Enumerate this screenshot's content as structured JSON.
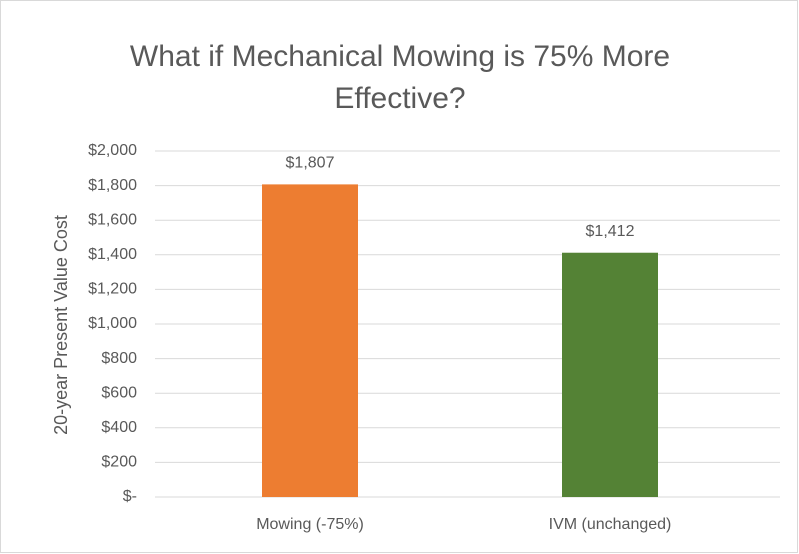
{
  "chart_data": {
    "type": "bar",
    "title": "What if Mechanical Mowing is 75% More Effective?",
    "y_label": "20-year Present Value Cost",
    "categories": [
      "Mowing (-75%)",
      "IVM (unchanged)"
    ],
    "values": [
      1807,
      1412
    ],
    "value_labels": [
      "$1,807",
      "$1,412"
    ],
    "colors": [
      "#ed7d31",
      "#548235"
    ],
    "ylim": [
      0,
      2000
    ],
    "yticks": [
      {
        "value": 0,
        "label": "$-"
      },
      {
        "value": 200,
        "label": "$200"
      },
      {
        "value": 400,
        "label": "$400"
      },
      {
        "value": 600,
        "label": "$600"
      },
      {
        "value": 800,
        "label": "$800"
      },
      {
        "value": 1000,
        "label": "$1,000"
      },
      {
        "value": 1200,
        "label": "$1,200"
      },
      {
        "value": 1400,
        "label": "$1,400"
      },
      {
        "value": 1600,
        "label": "$1,600"
      },
      {
        "value": 1800,
        "label": "$1,800"
      },
      {
        "value": 2000,
        "label": "$2,000"
      }
    ],
    "grid": true
  }
}
